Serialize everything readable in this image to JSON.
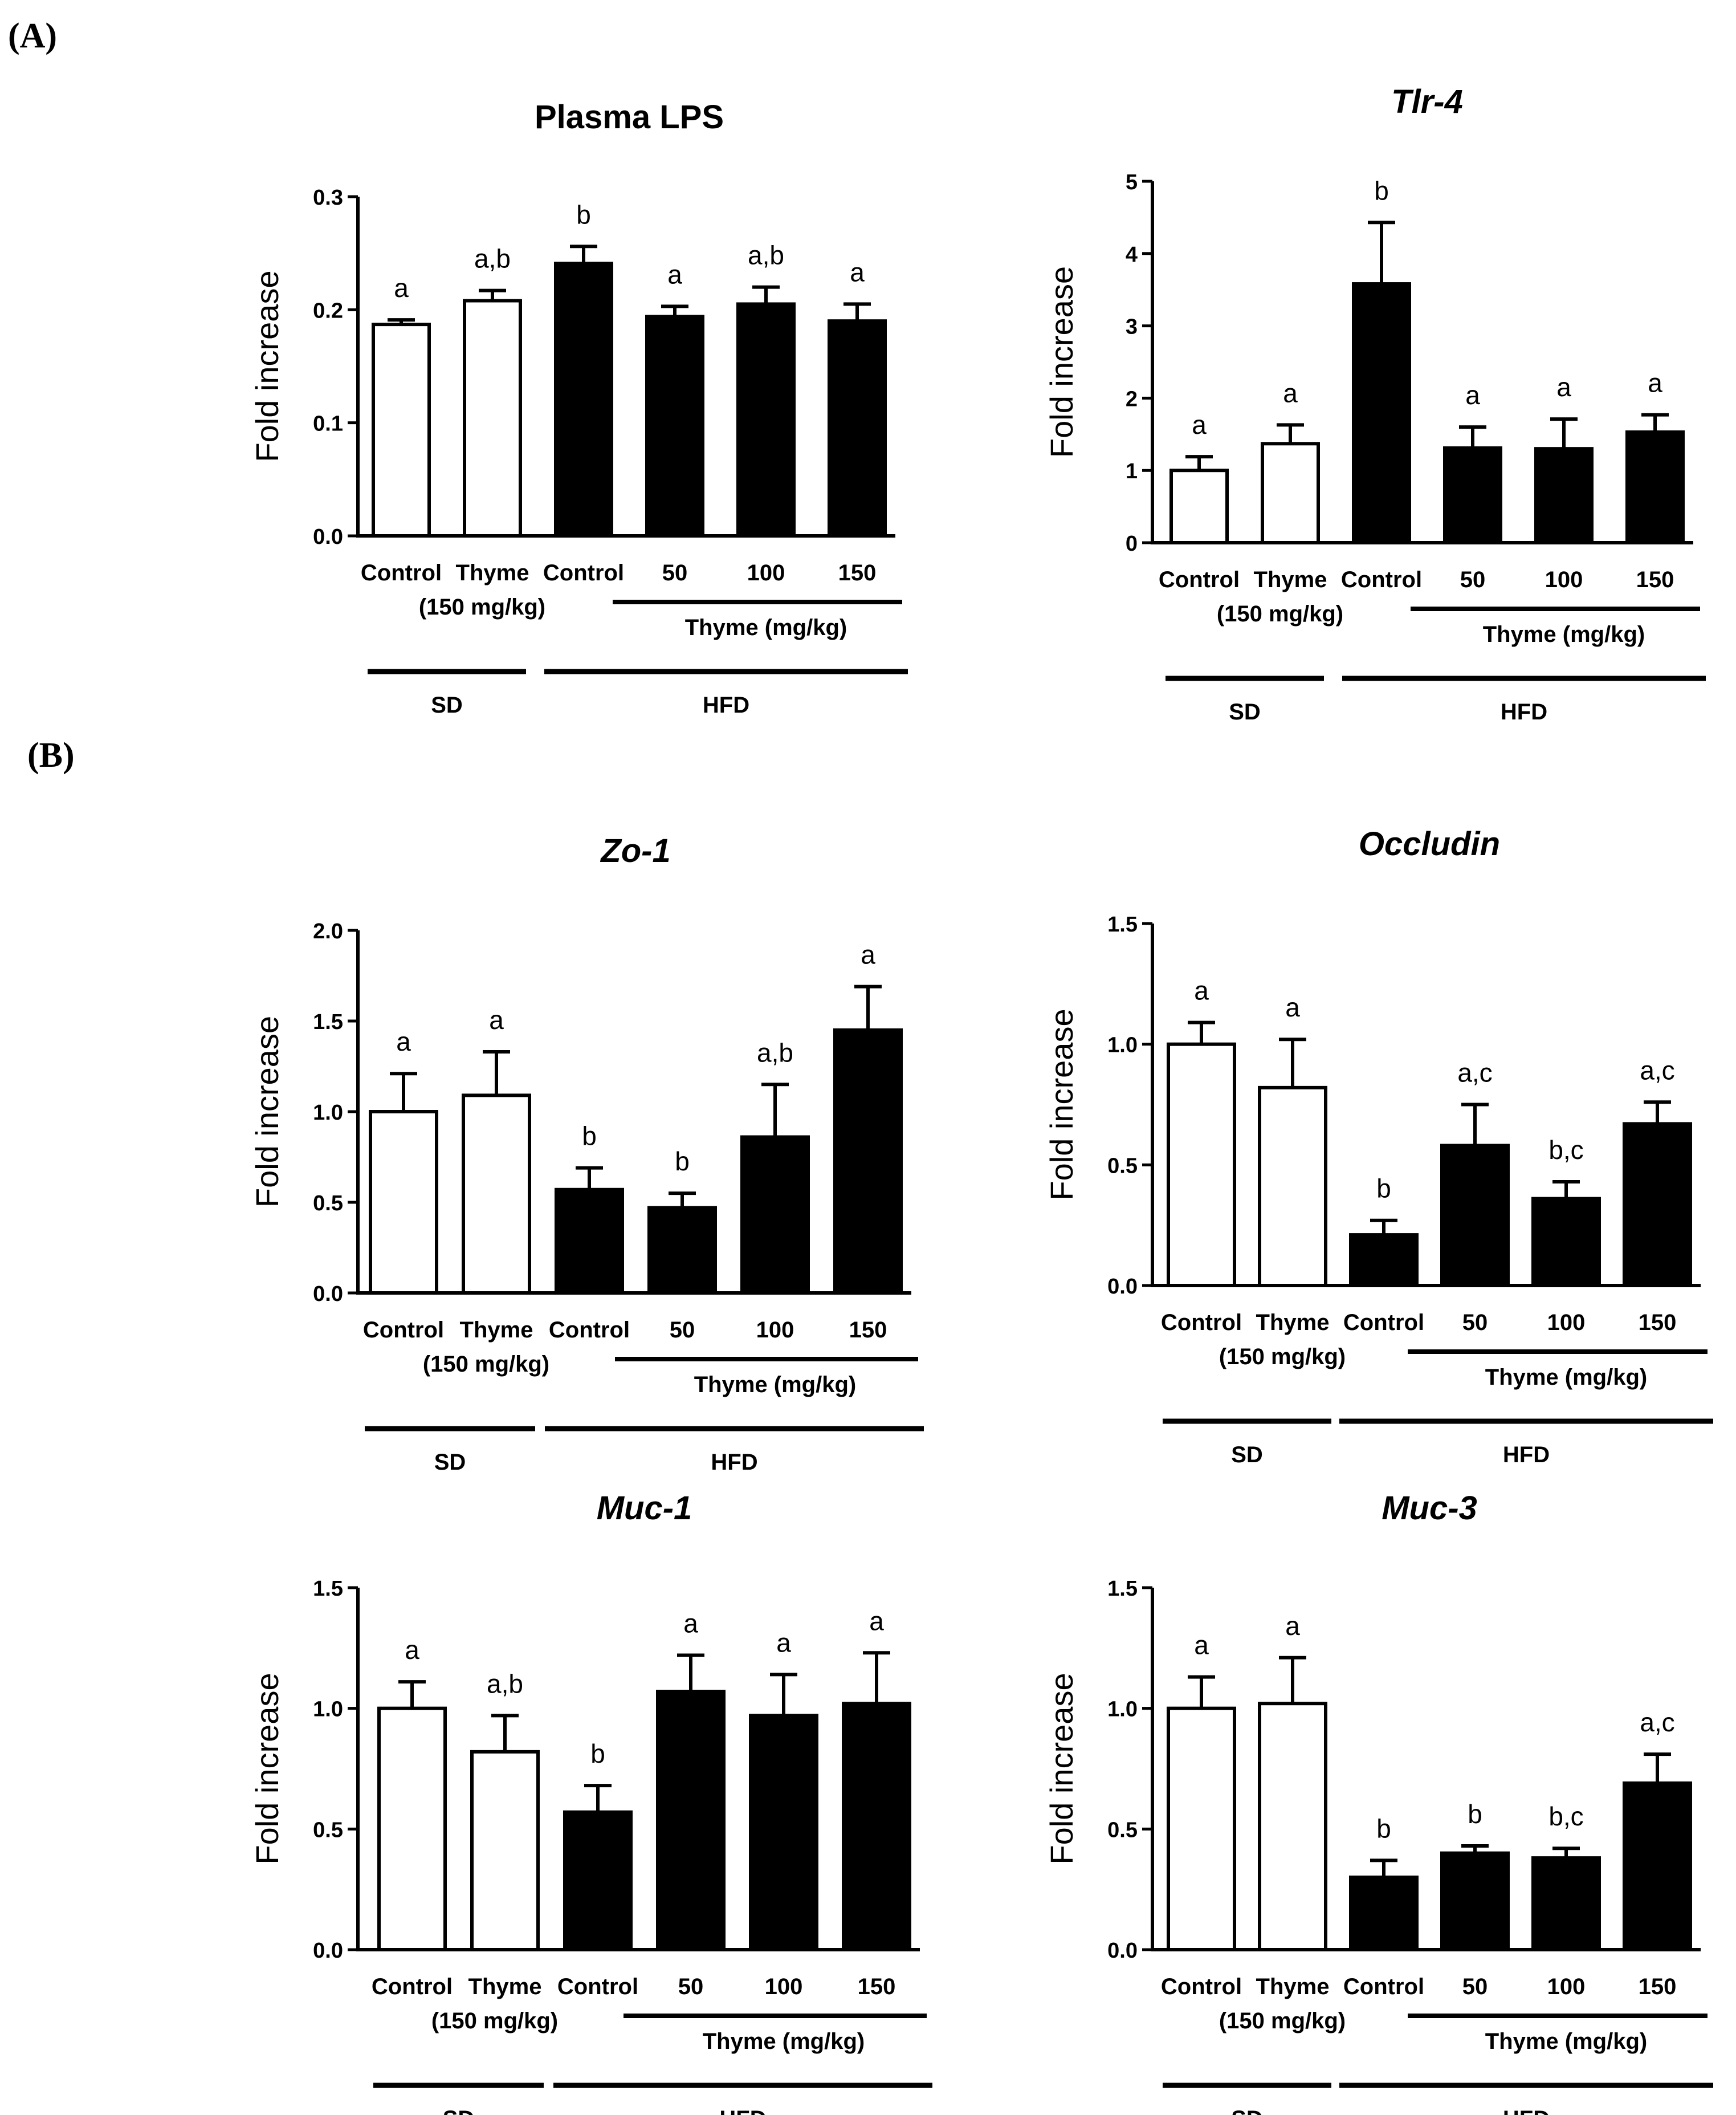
{
  "panels": [
    "(A)",
    "(B)"
  ],
  "chart_data": [
    {
      "type": "bar",
      "title": "Plasma LPS",
      "title_italic": false,
      "ylabel": "Fold increase",
      "ylim": [
        0,
        0.3
      ],
      "yticks": [
        "0.0",
        "0.1",
        "0.2",
        "0.3"
      ],
      "categories": [
        "Control",
        "Thyme",
        "Control",
        "50",
        "100",
        "150"
      ],
      "thyme_dose": "(150 mg/kg)",
      "group_label": "Thyme (mg/kg)",
      "diet_groups": [
        "SD",
        "HFD"
      ],
      "values": [
        0.187,
        0.208,
        0.241,
        0.194,
        0.205,
        0.19
      ],
      "errors": [
        0.004,
        0.009,
        0.015,
        0.009,
        0.015,
        0.015
      ],
      "fill": [
        "white",
        "white",
        "black",
        "black",
        "black",
        "black"
      ],
      "annotations": [
        "a",
        "a,b",
        "b",
        "a",
        "a,b",
        "a"
      ]
    },
    {
      "type": "bar",
      "title": "Tlr-4",
      "title_italic": true,
      "ylabel": "Fold increase",
      "ylim": [
        0,
        5
      ],
      "yticks": [
        "0",
        "1",
        "2",
        "3",
        "4",
        "5"
      ],
      "categories": [
        "Control",
        "Thyme",
        "Control",
        "50",
        "100",
        "150"
      ],
      "thyme_dose": "(150 mg/kg)",
      "group_label": "Thyme (mg/kg)",
      "diet_groups": [
        "SD",
        "HFD"
      ],
      "values": [
        1.0,
        1.37,
        3.58,
        1.31,
        1.3,
        1.53
      ],
      "errors": [
        0.19,
        0.26,
        0.85,
        0.29,
        0.41,
        0.24
      ],
      "fill": [
        "white",
        "white",
        "black",
        "black",
        "black",
        "black"
      ],
      "annotations": [
        "a",
        "a",
        "b",
        "a",
        "a",
        "a"
      ]
    },
    {
      "type": "bar",
      "title": "Zo-1",
      "title_italic": true,
      "ylabel": "Fold increase",
      "ylim": [
        0,
        2.0
      ],
      "yticks": [
        "0.0",
        "0.5",
        "1.0",
        "1.5",
        "2.0"
      ],
      "categories": [
        "Control",
        "Thyme",
        "Control",
        "50",
        "100",
        "150"
      ],
      "thyme_dose": "(150 mg/kg)",
      "group_label": "Thyme (mg/kg)",
      "diet_groups": [
        "SD",
        "HFD"
      ],
      "values": [
        1.0,
        1.09,
        0.57,
        0.47,
        0.86,
        1.45
      ],
      "errors": [
        0.21,
        0.24,
        0.12,
        0.08,
        0.29,
        0.24
      ],
      "fill": [
        "white",
        "white",
        "black",
        "black",
        "black",
        "black"
      ],
      "annotations": [
        "a",
        "a",
        "b",
        "b",
        "a,b",
        "a"
      ]
    },
    {
      "type": "bar",
      "title": "Occludin",
      "title_italic": true,
      "ylabel": "Fold increase",
      "ylim": [
        0,
        1.5
      ],
      "yticks": [
        "0.0",
        "0.5",
        "1.0",
        "1.5"
      ],
      "categories": [
        "Control",
        "Thyme",
        "Control",
        "50",
        "100",
        "150"
      ],
      "thyme_dose": "(150 mg/kg)",
      "group_label": "Thyme (mg/kg)",
      "diet_groups": [
        "SD",
        "HFD"
      ],
      "values": [
        1.0,
        0.82,
        0.21,
        0.58,
        0.36,
        0.67
      ],
      "errors": [
        0.09,
        0.2,
        0.06,
        0.17,
        0.07,
        0.09
      ],
      "fill": [
        "white",
        "white",
        "black",
        "black",
        "black",
        "black"
      ],
      "annotations": [
        "a",
        "a",
        "b",
        "a,c",
        "b,c",
        "a,c"
      ]
    },
    {
      "type": "bar",
      "title": "Muc-1",
      "title_italic": true,
      "ylabel": "Fold increase",
      "ylim": [
        0,
        1.5
      ],
      "yticks": [
        "0.0",
        "0.5",
        "1.0",
        "1.5"
      ],
      "categories": [
        "Control",
        "Thyme",
        "Control",
        "50",
        "100",
        "150"
      ],
      "thyme_dose": "(150 mg/kg)",
      "group_label": "Thyme (mg/kg)",
      "diet_groups": [
        "SD",
        "HFD"
      ],
      "values": [
        1.0,
        0.82,
        0.57,
        1.07,
        0.97,
        1.02
      ],
      "errors": [
        0.11,
        0.15,
        0.11,
        0.15,
        0.17,
        0.21
      ],
      "fill": [
        "white",
        "white",
        "black",
        "black",
        "black",
        "black"
      ],
      "annotations": [
        "a",
        "a,b",
        "b",
        "a",
        "a",
        "a"
      ]
    },
    {
      "type": "bar",
      "title": "Muc-3",
      "title_italic": true,
      "ylabel": "Fold increase",
      "ylim": [
        0,
        1.5
      ],
      "yticks": [
        "0.0",
        "0.5",
        "1.0",
        "1.5"
      ],
      "categories": [
        "Control",
        "Thyme",
        "Control",
        "50",
        "100",
        "150"
      ],
      "thyme_dose": "(150 mg/kg)",
      "group_label": "Thyme (mg/kg)",
      "diet_groups": [
        "SD",
        "HFD"
      ],
      "values": [
        1.0,
        1.02,
        0.3,
        0.4,
        0.38,
        0.69
      ],
      "errors": [
        0.13,
        0.19,
        0.07,
        0.03,
        0.04,
        0.12
      ],
      "fill": [
        "white",
        "white",
        "black",
        "black",
        "black",
        "black"
      ],
      "annotations": [
        "a",
        "a",
        "b",
        "b",
        "b,c",
        "a,c"
      ]
    }
  ]
}
